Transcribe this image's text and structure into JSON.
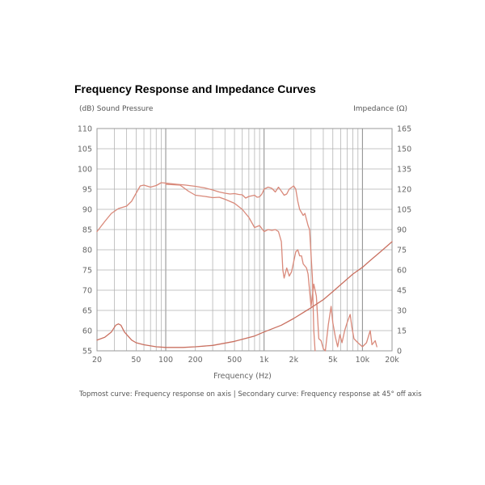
{
  "chart_data": {
    "type": "line",
    "title": "Frequency Response and Impedance Curves",
    "ylabel_left": "(dB) Sound Pressure",
    "ylabel_right": "Impedance (Ω)",
    "xlabel": "Frequency (Hz)",
    "caption": "Topmost curve: Frequency response on axis  |  Secondary curve: Frequency response at 45° off axis",
    "x_scale": "log",
    "xlim": [
      20,
      20000
    ],
    "ylim_left": [
      55,
      110
    ],
    "ylim_right": [
      0,
      165
    ],
    "x_ticks": [
      {
        "value": 20,
        "label": "20"
      },
      {
        "value": 50,
        "label": "50"
      },
      {
        "value": 100,
        "label": "100"
      },
      {
        "value": 200,
        "label": "200"
      },
      {
        "value": 500,
        "label": "500"
      },
      {
        "value": 1000,
        "label": "1k"
      },
      {
        "value": 2000,
        "label": "2k"
      },
      {
        "value": 5000,
        "label": "5k"
      },
      {
        "value": 10000,
        "label": "10k"
      },
      {
        "value": 20000,
        "label": "20k"
      }
    ],
    "y_ticks_left": [
      55,
      60,
      65,
      70,
      75,
      80,
      85,
      90,
      95,
      100,
      105,
      110
    ],
    "y_ticks_right": [
      0,
      15,
      30,
      45,
      60,
      75,
      90,
      105,
      120,
      135,
      150,
      165
    ],
    "grid": true,
    "series": [
      {
        "name": "Frequency response on axis",
        "axis": "left",
        "color": "#d9897a",
        "points": [
          [
            20,
            84.5
          ],
          [
            24,
            87
          ],
          [
            28,
            89
          ],
          [
            33,
            90.2
          ],
          [
            40,
            90.8
          ],
          [
            45,
            92
          ],
          [
            50,
            94
          ],
          [
            55,
            95.8
          ],
          [
            60,
            96
          ],
          [
            70,
            95.5
          ],
          [
            80,
            95.9
          ],
          [
            90,
            96.6
          ],
          [
            100,
            96.5
          ],
          [
            130,
            96.2
          ],
          [
            160,
            96
          ],
          [
            200,
            95.7
          ],
          [
            250,
            95.3
          ],
          [
            300,
            94.8
          ],
          [
            350,
            94.3
          ],
          [
            400,
            94
          ],
          [
            450,
            93.8
          ],
          [
            500,
            93.9
          ],
          [
            550,
            93.7
          ],
          [
            600,
            93.6
          ],
          [
            650,
            92.8
          ],
          [
            700,
            93.2
          ],
          [
            800,
            93.5
          ],
          [
            850,
            93
          ],
          [
            900,
            93.1
          ],
          [
            950,
            93.8
          ],
          [
            1000,
            95
          ],
          [
            1100,
            95.5
          ],
          [
            1200,
            95.2
          ],
          [
            1300,
            94.3
          ],
          [
            1400,
            95.5
          ],
          [
            1500,
            94.5
          ],
          [
            1600,
            93.5
          ],
          [
            1700,
            93.8
          ],
          [
            1800,
            95
          ],
          [
            2000,
            95.8
          ],
          [
            2100,
            95
          ],
          [
            2200,
            92
          ],
          [
            2300,
            90
          ],
          [
            2500,
            88.5
          ],
          [
            2600,
            89
          ],
          [
            2800,
            86
          ],
          [
            2900,
            85
          ],
          [
            3100,
            73
          ],
          [
            3200,
            60
          ],
          [
            3300,
            55
          ]
        ]
      },
      {
        "name": "Frequency response at 45° off axis",
        "axis": "left",
        "color": "#d9897a",
        "points": [
          [
            100,
            96.2
          ],
          [
            140,
            96
          ],
          [
            170,
            94.5
          ],
          [
            200,
            93.5
          ],
          [
            250,
            93.2
          ],
          [
            300,
            92.9
          ],
          [
            350,
            93
          ],
          [
            400,
            92.5
          ],
          [
            500,
            91.5
          ],
          [
            600,
            90
          ],
          [
            700,
            88
          ],
          [
            800,
            85.5
          ],
          [
            900,
            86
          ],
          [
            1000,
            84.5
          ],
          [
            1100,
            85
          ],
          [
            1200,
            84.8
          ],
          [
            1300,
            85
          ],
          [
            1400,
            84.5
          ],
          [
            1500,
            82
          ],
          [
            1550,
            75
          ],
          [
            1600,
            73
          ],
          [
            1700,
            75.5
          ],
          [
            1800,
            73.5
          ],
          [
            1900,
            74.5
          ],
          [
            2000,
            77
          ],
          [
            2100,
            79.5
          ],
          [
            2200,
            80
          ],
          [
            2300,
            78.5
          ],
          [
            2400,
            78.5
          ],
          [
            2500,
            76.5
          ],
          [
            2700,
            75.5
          ],
          [
            2800,
            74
          ],
          [
            3000,
            66
          ],
          [
            3200,
            71.5
          ],
          [
            3400,
            68.5
          ],
          [
            3600,
            58
          ],
          [
            3800,
            57.5
          ],
          [
            4000,
            55.5
          ],
          [
            4200,
            55
          ],
          [
            4500,
            61.5
          ],
          [
            4800,
            66
          ],
          [
            5000,
            62
          ],
          [
            5300,
            58.5
          ],
          [
            5600,
            56
          ],
          [
            5900,
            59
          ],
          [
            6200,
            57
          ],
          [
            6600,
            60
          ],
          [
            7000,
            62
          ],
          [
            7500,
            64
          ],
          [
            7800,
            61
          ],
          [
            8200,
            58
          ],
          [
            9000,
            57
          ],
          [
            10000,
            56
          ],
          [
            11000,
            57
          ],
          [
            12000,
            60
          ],
          [
            12500,
            56.5
          ],
          [
            13500,
            57.5
          ],
          [
            14000,
            56
          ]
        ]
      },
      {
        "name": "Impedance",
        "axis": "right",
        "color": "#c97060",
        "points": [
          [
            20,
            8
          ],
          [
            24,
            10
          ],
          [
            28,
            14
          ],
          [
            31,
            19
          ],
          [
            33,
            20
          ],
          [
            35,
            19
          ],
          [
            38,
            14
          ],
          [
            45,
            8
          ],
          [
            50,
            6
          ],
          [
            60,
            4.5
          ],
          [
            80,
            3
          ],
          [
            100,
            2.5
          ],
          [
            150,
            2.5
          ],
          [
            200,
            3
          ],
          [
            300,
            4
          ],
          [
            500,
            7
          ],
          [
            800,
            11
          ],
          [
            1000,
            14
          ],
          [
            1500,
            19
          ],
          [
            2000,
            24
          ],
          [
            3000,
            32
          ],
          [
            4000,
            38
          ],
          [
            5000,
            44
          ],
          [
            6000,
            49
          ],
          [
            8000,
            57
          ],
          [
            10000,
            62
          ],
          [
            12000,
            67
          ],
          [
            15000,
            73
          ],
          [
            20000,
            81
          ]
        ]
      }
    ]
  }
}
